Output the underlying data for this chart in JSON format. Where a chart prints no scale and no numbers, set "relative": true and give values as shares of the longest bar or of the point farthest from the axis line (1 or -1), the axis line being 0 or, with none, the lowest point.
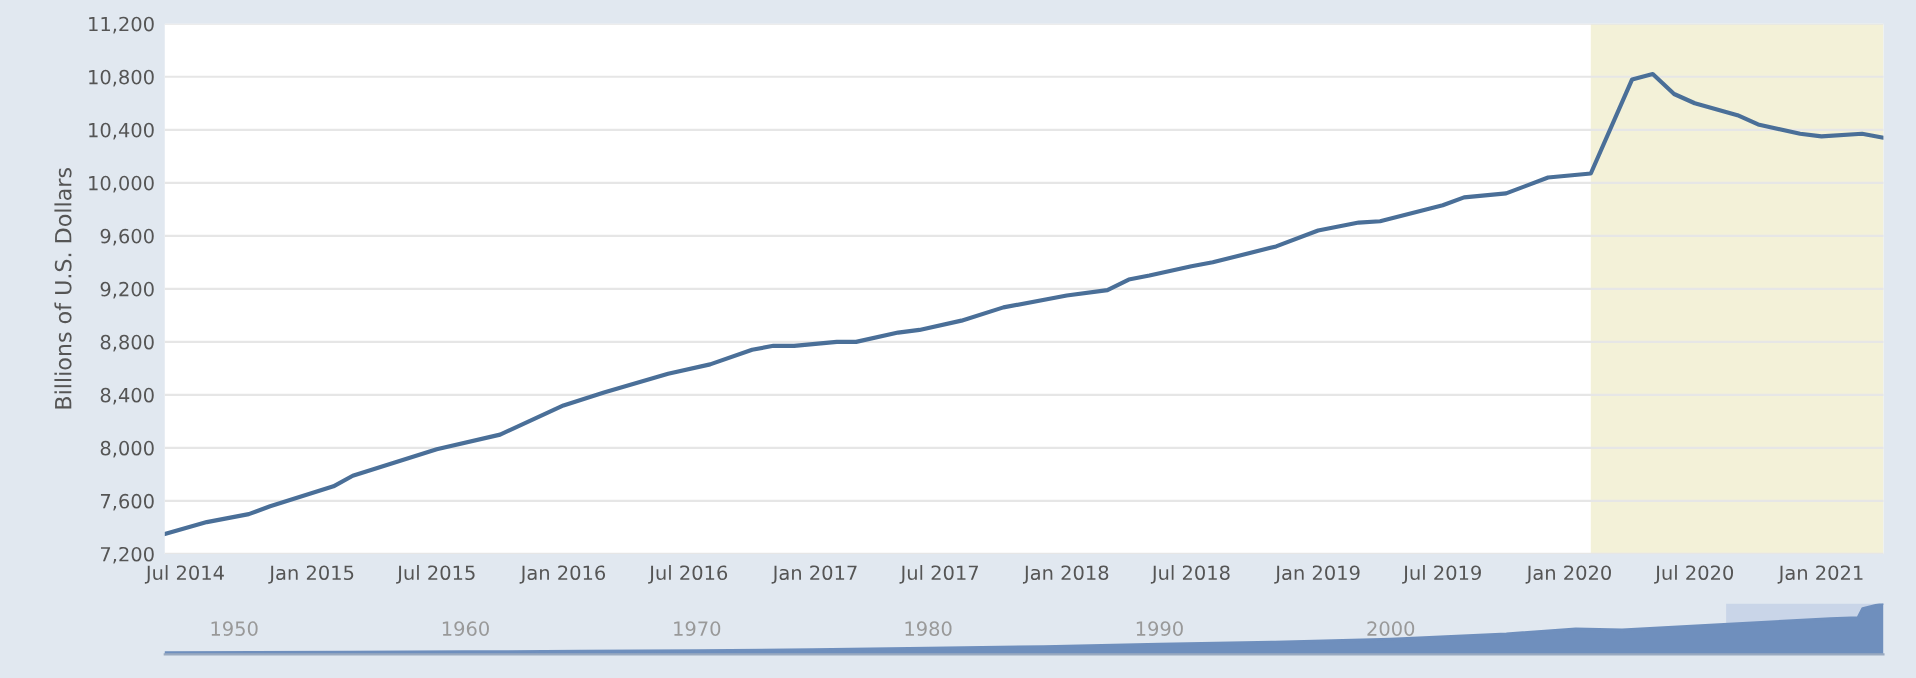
{
  "chart_data": [
    {
      "type": "line",
      "ylabel": "Billions of U.S. Dollars",
      "grid": "y",
      "x": [
        "2014-06",
        "2014-08",
        "2014-10",
        "2014-11",
        "2015-02",
        "2015-03",
        "2015-05",
        "2015-07",
        "2015-10",
        "2016-01",
        "2016-03",
        "2016-06",
        "2016-08",
        "2016-10",
        "2016-11",
        "2016-12",
        "2017-02",
        "2017-03",
        "2017-05",
        "2017-06",
        "2017-08",
        "2017-10",
        "2018-01",
        "2018-03",
        "2018-04",
        "2018-05",
        "2018-07",
        "2018-08",
        "2018-11",
        "2019-01",
        "2019-03",
        "2019-04",
        "2019-07",
        "2019-08",
        "2019-10",
        "2019-12",
        "2020-02",
        "2020-04",
        "2020-05",
        "2020-06",
        "2020-07",
        "2020-09",
        "2020-10",
        "2020-12",
        "2021-01",
        "2021-03",
        "2021-04"
      ],
      "series": [
        {
          "color": "#4a6f98",
          "values": [
            7350,
            7440,
            7500,
            7560,
            7710,
            7790,
            7890,
            7990,
            8100,
            8320,
            8420,
            8560,
            8630,
            8740,
            8770,
            8770,
            8800,
            8800,
            8870,
            8890,
            8960,
            9060,
            9150,
            9190,
            9270,
            9300,
            9370,
            9400,
            9520,
            9640,
            9700,
            9710,
            9830,
            9890,
            9920,
            10040,
            10070,
            10780,
            10820,
            10670,
            10600,
            10510,
            10440,
            10370,
            10350,
            10370,
            10340
          ]
        }
      ],
      "xlim": [
        "2014-06",
        "2021-04"
      ],
      "xticks": [
        {
          "value": "2014-07",
          "label": "Jul 2014"
        },
        {
          "value": "2015-01",
          "label": "Jan 2015"
        },
        {
          "value": "2015-07",
          "label": "Jul 2015"
        },
        {
          "value": "2016-01",
          "label": "Jan 2016"
        },
        {
          "value": "2016-07",
          "label": "Jul 2016"
        },
        {
          "value": "2017-01",
          "label": "Jan 2017"
        },
        {
          "value": "2017-07",
          "label": "Jul 2017"
        },
        {
          "value": "2018-01",
          "label": "Jan 2018"
        },
        {
          "value": "2018-07",
          "label": "Jul 2018"
        },
        {
          "value": "2019-01",
          "label": "Jan 2019"
        },
        {
          "value": "2019-07",
          "label": "Jul 2019"
        },
        {
          "value": "2020-01",
          "label": "Jan 2020"
        },
        {
          "value": "2020-07",
          "label": "Jul 2020"
        },
        {
          "value": "2021-01",
          "label": "Jan 2021"
        }
      ],
      "ylim": [
        7200,
        11200
      ],
      "yticks": [
        {
          "value": 7200,
          "label": "7,200"
        },
        {
          "value": 7600,
          "label": "7,600"
        },
        {
          "value": 8000,
          "label": "8,000"
        },
        {
          "value": 8400,
          "label": "8,400"
        },
        {
          "value": 8800,
          "label": "8,800"
        },
        {
          "value": 9200,
          "label": "9,200"
        },
        {
          "value": 9600,
          "label": "9,600"
        },
        {
          "value": 10000,
          "label": "10,000"
        },
        {
          "value": 10400,
          "label": "10,400"
        },
        {
          "value": 10800,
          "label": "10,800"
        },
        {
          "value": 11200,
          "label": "11,200"
        }
      ],
      "bands": [
        {
          "axis": "x",
          "from": "2020-02",
          "to": "2021-04",
          "color": "#f3f1d8"
        }
      ]
    },
    {
      "type": "area",
      "relative": true,
      "tick_labels": "x",
      "grid": false,
      "x": [
        1947,
        1955,
        1960,
        1965,
        1970,
        1975,
        1980,
        1985,
        1990,
        1995,
        2000,
        2005,
        2008,
        2010,
        2014,
        2019,
        2020.2,
        2020.4,
        2021.3
      ],
      "series": [
        {
          "color": "#6f8fbd",
          "values": [
            0.03,
            0.04,
            0.05,
            0.06,
            0.07,
            0.09,
            0.12,
            0.15,
            0.2,
            0.24,
            0.3,
            0.4,
            0.5,
            0.48,
            0.58,
            0.7,
            0.72,
            0.9,
            1
          ]
        }
      ],
      "xlim": [
        1947,
        2021.3
      ],
      "xticks": [
        1950,
        1960,
        1970,
        1980,
        1990,
        2000
      ],
      "bands": [
        {
          "axis": "x",
          "from": 2014.5,
          "to": 2021.3,
          "color": "#c9d5e8"
        }
      ]
    }
  ]
}
